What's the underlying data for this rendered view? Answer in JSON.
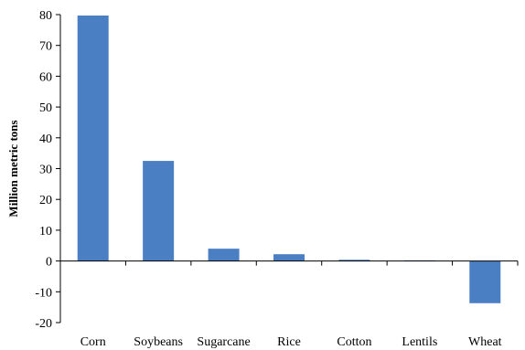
{
  "chart_data": {
    "type": "bar",
    "title": "",
    "xlabel": "",
    "ylabel": "Million metric tons",
    "categories": [
      "Corn",
      "Soybeans",
      "Sugarcane",
      "Rice",
      "Cotton",
      "Lentils",
      "Wheat"
    ],
    "values": [
      79.7,
      32.5,
      4.0,
      2.2,
      0.4,
      0.2,
      -13.7
    ],
    "ylim": [
      -20,
      80
    ],
    "yticks": [
      -20,
      -10,
      0,
      10,
      20,
      30,
      40,
      50,
      60,
      70,
      80
    ],
    "grid": false,
    "legend": "none",
    "bar_color": "#4a7fc4"
  }
}
